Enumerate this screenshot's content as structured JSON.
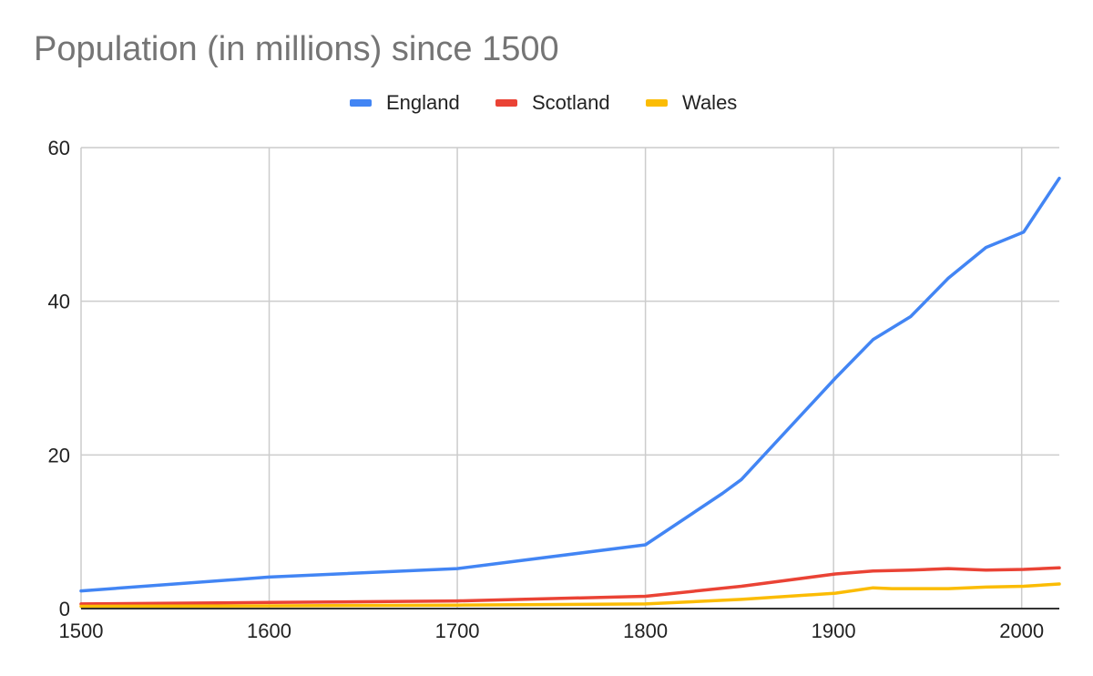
{
  "chart_data": {
    "type": "line",
    "title": "Population (in millions) since 1500",
    "xlabel": "",
    "ylabel": "",
    "xlim": [
      1500,
      2020
    ],
    "ylim": [
      0,
      60
    ],
    "xticks": [
      1500,
      1600,
      1700,
      1800,
      1900,
      2000
    ],
    "yticks": [
      0,
      20,
      40,
      60
    ],
    "grid": true,
    "legend_position": "top",
    "series": [
      {
        "name": "England",
        "color": "#4285f4",
        "x": [
          1500,
          1600,
          1700,
          1800,
          1841,
          1851,
          1901,
          1921,
          1941,
          1961,
          1981,
          2001,
          2020
        ],
        "values": [
          2.3,
          4.1,
          5.2,
          8.3,
          15.0,
          16.8,
          30.0,
          35.0,
          38.0,
          43.0,
          47.0,
          49.0,
          56.0
        ]
      },
      {
        "name": "Scotland",
        "color": "#ea4335",
        "x": [
          1500,
          1600,
          1700,
          1800,
          1851,
          1901,
          1921,
          1941,
          1961,
          1981,
          2001,
          2020
        ],
        "values": [
          0.6,
          0.8,
          1.0,
          1.6,
          2.9,
          4.5,
          4.9,
          5.0,
          5.2,
          5.0,
          5.1,
          5.3
        ]
      },
      {
        "name": "Wales",
        "color": "#fbbc04",
        "x": [
          1500,
          1600,
          1700,
          1800,
          1851,
          1901,
          1921,
          1931,
          1961,
          1981,
          2001,
          2020
        ],
        "values": [
          0.3,
          0.35,
          0.45,
          0.6,
          1.2,
          2.0,
          2.7,
          2.6,
          2.6,
          2.8,
          2.9,
          3.2
        ]
      }
    ]
  }
}
